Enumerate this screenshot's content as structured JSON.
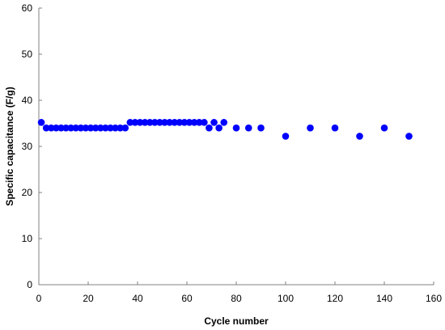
{
  "chart_data": {
    "type": "scatter",
    "title": "",
    "xlabel": "Cycle number",
    "ylabel": "Specific capacitance (F/g)",
    "xlim": [
      0,
      160
    ],
    "ylim": [
      0,
      60
    ],
    "xticks": [
      0,
      20,
      40,
      60,
      80,
      100,
      120,
      140,
      160
    ],
    "yticks": [
      0,
      10,
      20,
      30,
      40,
      50,
      60
    ],
    "xtick_labels": [
      "0",
      "20",
      "40",
      "60",
      "80",
      "100",
      "120",
      "140",
      "160"
    ],
    "ytick_labels": [
      "0",
      "10",
      "20",
      "30",
      "40",
      "50",
      "60"
    ],
    "grid": false,
    "legend": "none",
    "marker_color": "#0000ff",
    "series": [
      {
        "x": [
          1,
          3,
          5,
          7,
          9,
          11,
          13,
          15,
          17,
          19,
          21,
          23,
          25,
          27,
          29,
          31,
          33,
          35,
          37,
          39,
          41,
          43,
          45,
          47,
          49,
          51,
          53,
          55,
          57,
          59,
          61,
          63,
          65,
          67,
          69,
          71,
          73,
          75,
          80,
          85,
          90,
          100,
          110,
          120,
          130,
          140,
          150
        ],
        "y": [
          35.2,
          34,
          34,
          34,
          34,
          34,
          34,
          34,
          34,
          34,
          34,
          34,
          34,
          34,
          34,
          34,
          34,
          34,
          35.2,
          35.2,
          35.2,
          35.2,
          35.2,
          35.2,
          35.2,
          35.2,
          35.2,
          35.2,
          35.2,
          35.2,
          35.2,
          35.2,
          35.2,
          35.2,
          34,
          35.2,
          34,
          35.2,
          34,
          34,
          34,
          32.2,
          34,
          34,
          32.2,
          34,
          32.2
        ]
      }
    ]
  }
}
